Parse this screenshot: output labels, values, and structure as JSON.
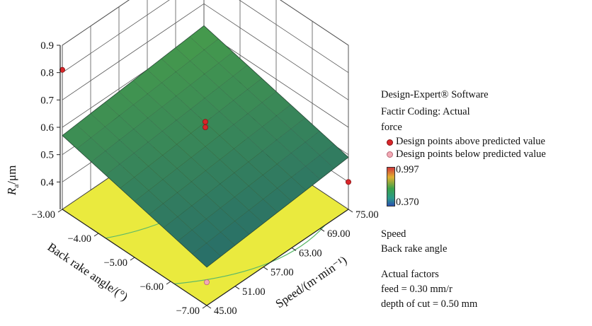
{
  "chart_data": {
    "type": "surface3d",
    "zlabel_main": "R",
    "zlabel_sub": "a",
    "zlabel_unit": "/μm",
    "z_ticks": [
      "0.4",
      "0.5",
      "0.6",
      "0.7",
      "0.8",
      "0.9"
    ],
    "z_range": [
      0.3,
      0.9
    ],
    "x_label": "Speed/(m·min⁻¹)",
    "x_ticks": [
      "45.00",
      "51.00",
      "57.00",
      "63.00",
      "69.00",
      "75.00"
    ],
    "x_range": [
      45,
      75
    ],
    "y_label": "Back rake angle/(°)",
    "y_ticks": [
      "-7.00",
      "-6.00",
      "-5.00",
      "-4.00",
      "-3.00"
    ],
    "y_range": [
      -7,
      -3
    ],
    "surface": {
      "corner_values": {
        "speed45_angle-7": 0.44,
        "speed45_angle-3": 0.57,
        "speed75_angle-3": 0.62,
        "speed75_angle-7": 0.49
      },
      "color_low": "#2a4fb0",
      "color_mid": "#2f9a4a",
      "color_high": "#d2373a"
    },
    "design_points": [
      {
        "speed": 60,
        "angle": -5,
        "z": 0.62,
        "position": "above"
      },
      {
        "speed": 60,
        "angle": -5,
        "z": 0.6,
        "position": "above"
      },
      {
        "speed": 45,
        "angle": -3,
        "z": 0.81,
        "position": "above"
      },
      {
        "speed": 75,
        "angle": -7,
        "z": 0.4,
        "position": "above"
      },
      {
        "speed": 45,
        "angle": -7,
        "z": 0.385,
        "position": "below"
      }
    ],
    "floor_color": "#eaea3e"
  },
  "legend": {
    "line1": "Design-Expert® Software",
    "line2": "Factir Coding: Actual",
    "line3": "force",
    "above_label": "Design points above predicted value",
    "below_label": "Design points below predicted value",
    "above_color": "#d8262a",
    "below_color": "#f2a9b4",
    "colorbar_max": "0.997",
    "colorbar_min": "0.370",
    "factor1": "Speed",
    "factor2": "Back rake angle",
    "actual_title": "Actual factors",
    "feed": "feed = 0.30 mm/r",
    "depth": "depth of cut = 0.50 mm"
  }
}
